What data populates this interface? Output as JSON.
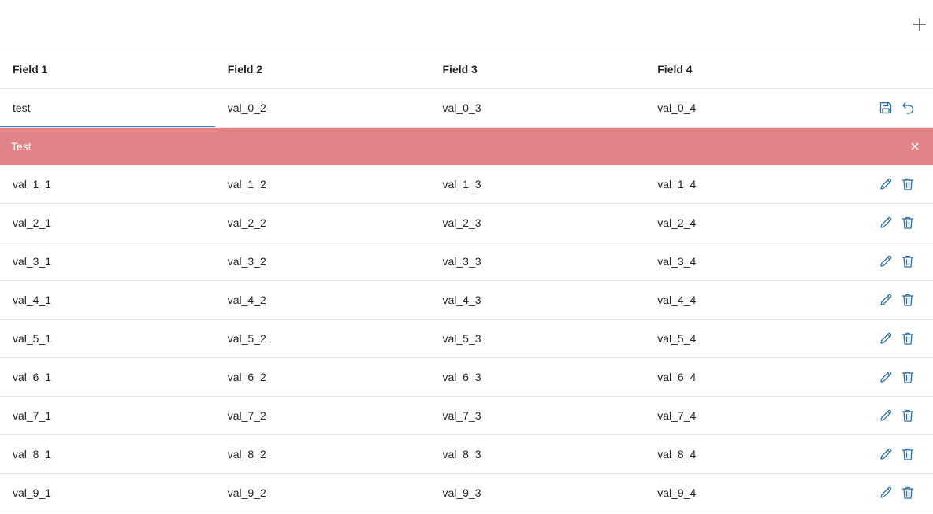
{
  "colors": {
    "accent": "#3d7fc2",
    "icon": "#2c6ea5",
    "error_bg": "#e18489",
    "divider": "#e3e3e3"
  },
  "toolbar": {
    "add_icon": "plus-icon"
  },
  "columns": [
    "Field 1",
    "Field 2",
    "Field 3",
    "Field 4"
  ],
  "edit_row": {
    "values": [
      "test",
      "val_0_2",
      "val_0_3",
      "val_0_4"
    ],
    "save_icon": "save-icon",
    "cancel_icon": "undo-icon"
  },
  "error": {
    "message": "Test",
    "close_icon": "close-icon"
  },
  "rows": [
    [
      "val_1_1",
      "val_1_2",
      "val_1_3",
      "val_1_4"
    ],
    [
      "val_2_1",
      "val_2_2",
      "val_2_3",
      "val_2_4"
    ],
    [
      "val_3_1",
      "val_3_2",
      "val_3_3",
      "val_3_4"
    ],
    [
      "val_4_1",
      "val_4_2",
      "val_4_3",
      "val_4_4"
    ],
    [
      "val_5_1",
      "val_5_2",
      "val_5_3",
      "val_5_4"
    ],
    [
      "val_6_1",
      "val_6_2",
      "val_6_3",
      "val_6_4"
    ],
    [
      "val_7_1",
      "val_7_2",
      "val_7_3",
      "val_7_4"
    ],
    [
      "val_8_1",
      "val_8_2",
      "val_8_3",
      "val_8_4"
    ],
    [
      "val_9_1",
      "val_9_2",
      "val_9_3",
      "val_9_4"
    ]
  ],
  "row_actions": {
    "edit_icon": "pencil-icon",
    "delete_icon": "trash-icon"
  }
}
